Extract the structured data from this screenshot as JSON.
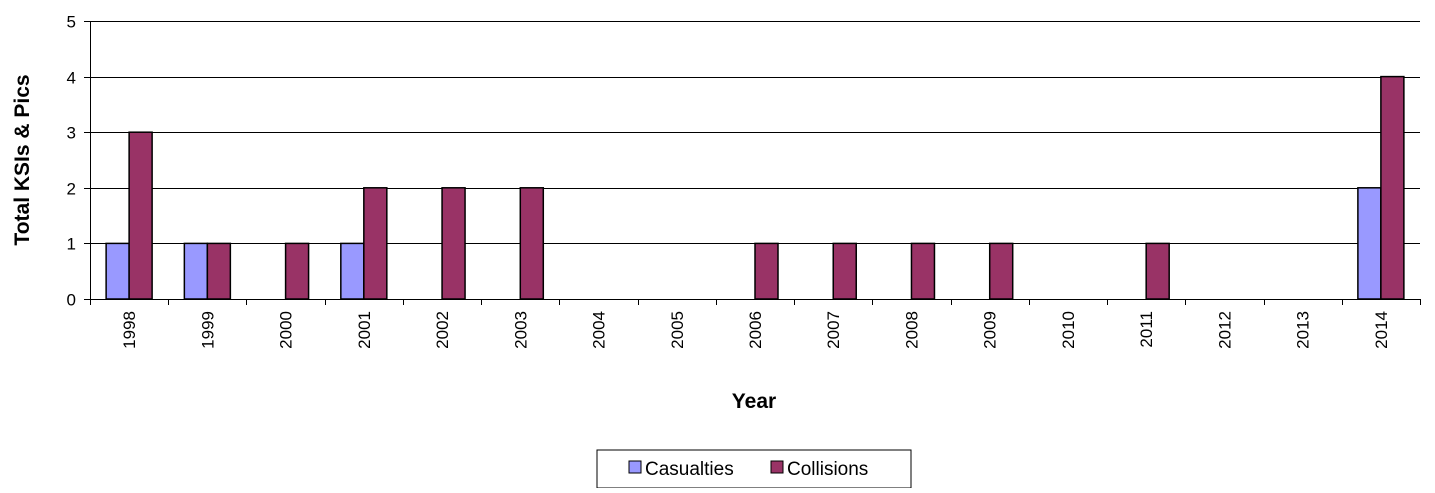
{
  "chart_data": {
    "type": "bar",
    "title": "",
    "xlabel": "Year",
    "ylabel": "Total KSIs  & Pics",
    "ylim": [
      0,
      5
    ],
    "yticks": [
      0,
      1,
      2,
      3,
      4,
      5
    ],
    "grid": true,
    "legend_position": "bottom-center",
    "categories": [
      "1998",
      "1999",
      "2000",
      "2001",
      "2002",
      "2003",
      "2004",
      "2005",
      "2006",
      "2007",
      "2008",
      "2009",
      "2010",
      "2011",
      "2012",
      "2013",
      "2014"
    ],
    "series": [
      {
        "name": "Casualties",
        "color": "#9999FF",
        "values": [
          1,
          1,
          0,
          1,
          0,
          0,
          0,
          0,
          0,
          0,
          0,
          0,
          0,
          0,
          0,
          0,
          2
        ]
      },
      {
        "name": "Collisions",
        "color": "#993366",
        "values": [
          3,
          1,
          1,
          2,
          2,
          2,
          0,
          0,
          1,
          1,
          1,
          1,
          0,
          1,
          0,
          0,
          4
        ]
      }
    ]
  }
}
